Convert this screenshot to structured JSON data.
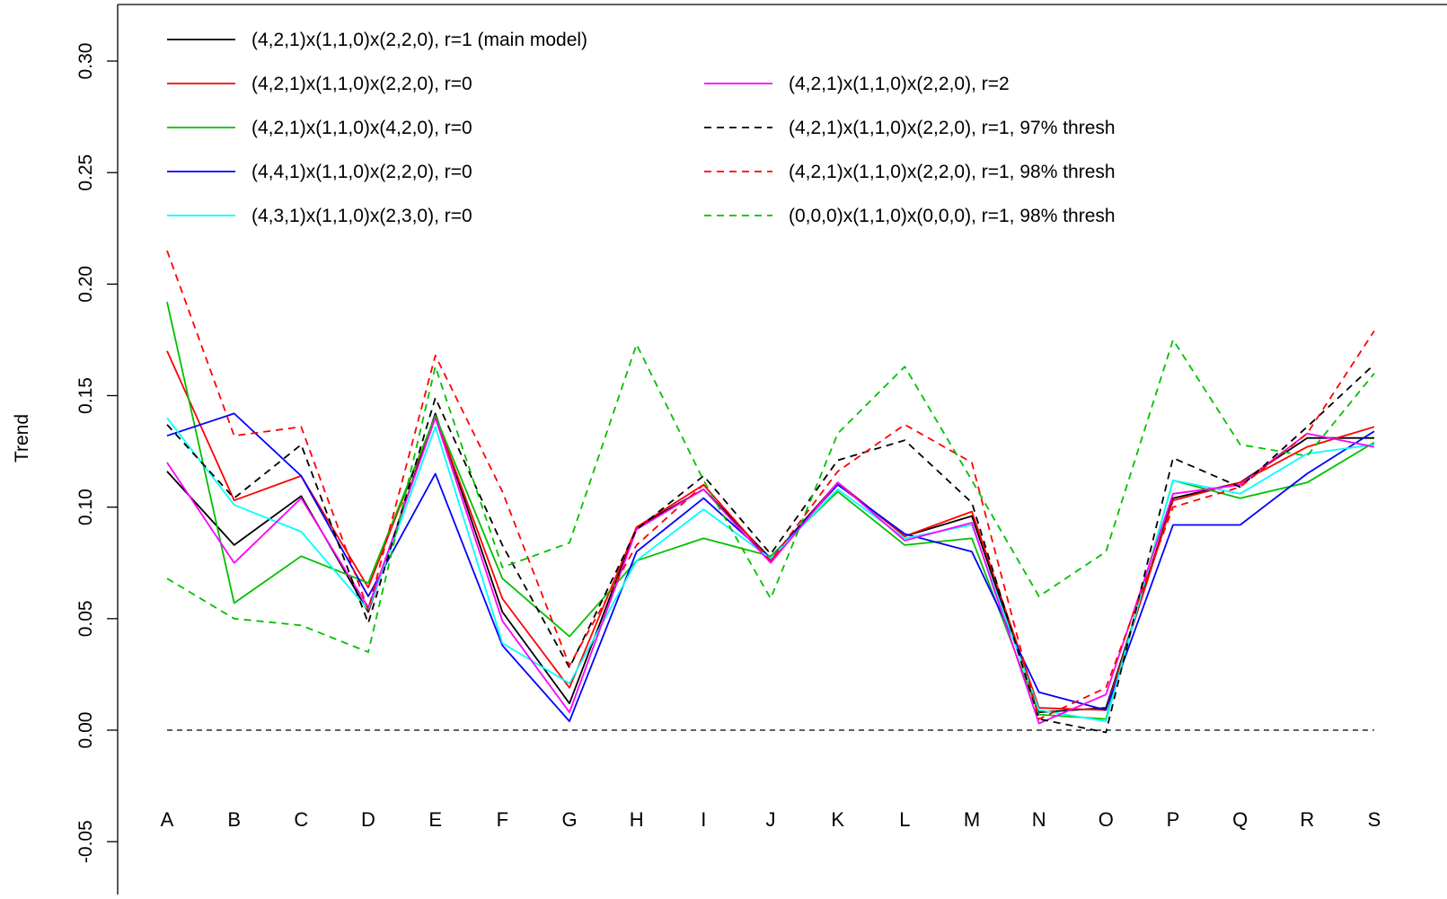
{
  "chart_data": {
    "type": "line",
    "title": "",
    "xlabel": "",
    "ylabel": "Trend",
    "ylim": [
      -0.055,
      0.325
    ],
    "yticks": [
      "-0.05",
      "0.00",
      "0.05",
      "0.10",
      "0.15",
      "0.20",
      "0.25",
      "0.30"
    ],
    "ytick_values": [
      -0.05,
      0.0,
      0.05,
      0.1,
      0.15,
      0.2,
      0.25,
      0.3
    ],
    "categories": [
      "A",
      "B",
      "C",
      "D",
      "E",
      "F",
      "G",
      "H",
      "I",
      "J",
      "K",
      "L",
      "M",
      "N",
      "O",
      "P",
      "Q",
      "R",
      "S"
    ],
    "grid": false,
    "legend_position": "top",
    "reference_line": {
      "y": 0.0,
      "color": "#000000",
      "dashed": true
    },
    "series": [
      {
        "name": "(4,2,1)x(1,1,0)x(2,2,0), r=1 (main model)",
        "color": "#000000",
        "dashed": false,
        "values": [
          0.116,
          0.083,
          0.105,
          0.053,
          0.142,
          0.053,
          0.012,
          0.091,
          0.108,
          0.077,
          0.111,
          0.087,
          0.096,
          0.008,
          0.01,
          0.104,
          0.111,
          0.131,
          0.131
        ]
      },
      {
        "name": "(4,2,1)x(1,1,0)x(2,2,0), r=0",
        "color": "#ff0000",
        "dashed": false,
        "values": [
          0.17,
          0.103,
          0.114,
          0.064,
          0.141,
          0.059,
          0.019,
          0.091,
          0.11,
          0.076,
          0.111,
          0.087,
          0.098,
          0.01,
          0.009,
          0.103,
          0.111,
          0.127,
          0.136
        ]
      },
      {
        "name": "(4,2,1)x(1,1,0)x(4,2,0), r=0",
        "color": "#00c000",
        "dashed": false,
        "values": [
          0.192,
          0.057,
          0.078,
          0.066,
          0.141,
          0.068,
          0.042,
          0.076,
          0.086,
          0.078,
          0.107,
          0.083,
          0.086,
          0.007,
          0.005,
          0.112,
          0.104,
          0.111,
          0.129
        ]
      },
      {
        "name": "(4,4,1)x(1,1,0)x(2,2,0), r=0",
        "color": "#0000ff",
        "dashed": false,
        "values": [
          0.132,
          0.142,
          0.114,
          0.06,
          0.115,
          0.038,
          0.004,
          0.08,
          0.104,
          0.077,
          0.11,
          0.088,
          0.08,
          0.017,
          0.009,
          0.092,
          0.092,
          0.115,
          0.134
        ]
      },
      {
        "name": "(4,3,1)x(1,1,0)x(2,3,0), r=0",
        "color": "#00ffff",
        "dashed": false,
        "values": [
          0.14,
          0.101,
          0.089,
          0.054,
          0.136,
          0.039,
          0.021,
          0.076,
          0.099,
          0.077,
          0.108,
          0.086,
          0.092,
          0.009,
          0.004,
          0.112,
          0.106,
          0.124,
          0.128
        ]
      },
      {
        "name": "(4,2,1)x(1,1,0)x(2,2,0), r=2",
        "color": "#ff00ff",
        "dashed": false,
        "values": [
          0.12,
          0.075,
          0.104,
          0.055,
          0.14,
          0.049,
          0.008,
          0.09,
          0.108,
          0.075,
          0.111,
          0.085,
          0.093,
          0.003,
          0.016,
          0.106,
          0.11,
          0.133,
          0.127
        ]
      },
      {
        "name": "(4,2,1)x(1,1,0)x(2,2,0), r=1, 97% thresh",
        "color": "#000000",
        "dashed": true,
        "values": [
          0.137,
          0.104,
          0.128,
          0.048,
          0.149,
          0.083,
          0.028,
          0.09,
          0.114,
          0.079,
          0.121,
          0.13,
          0.102,
          0.005,
          -0.001,
          0.122,
          0.109,
          0.136,
          0.164
        ]
      },
      {
        "name": "(4,2,1)x(1,1,0)x(2,2,0), r=1, 98% thresh",
        "color": "#ff0000",
        "dashed": true,
        "values": [
          0.215,
          0.132,
          0.136,
          0.054,
          0.168,
          0.107,
          0.029,
          0.083,
          0.11,
          0.076,
          0.116,
          0.137,
          0.12,
          0.005,
          0.019,
          0.1,
          0.109,
          0.133,
          0.179
        ]
      },
      {
        "name": "(0,0,0)x(1,1,0)x(0,0,0), r=1, 98% thresh",
        "color": "#00c000",
        "dashed": true,
        "values": [
          0.068,
          0.05,
          0.047,
          0.035,
          0.163,
          0.073,
          0.084,
          0.173,
          0.112,
          0.059,
          0.133,
          0.163,
          0.112,
          0.06,
          0.08,
          0.175,
          0.128,
          0.123,
          0.16
        ]
      }
    ]
  }
}
